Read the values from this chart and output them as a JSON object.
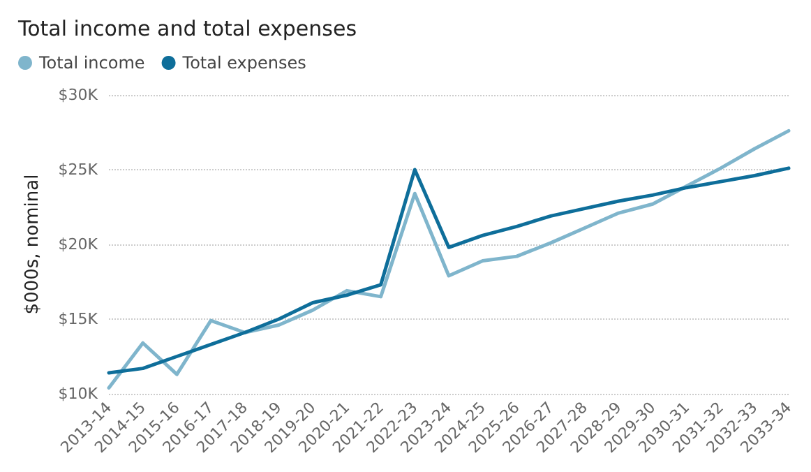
{
  "chart_data": {
    "type": "line",
    "title": "Total income and total expenses",
    "ylabel": "$000s, nominal",
    "categories": [
      "2013-14",
      "2014-15",
      "2015-16",
      "2016-17",
      "2017-18",
      "2018-19",
      "2019-20",
      "2020-21",
      "2021-22",
      "2022-23",
      "2023-24",
      "2024-25",
      "2025-26",
      "2026-27",
      "2027-28",
      "2028-29",
      "2029-30",
      "2030-31",
      "2031-32",
      "2032-33",
      "2033-34"
    ],
    "series": [
      {
        "name": "Total income",
        "color": "#7fb5cc",
        "values": [
          10400,
          13400,
          11300,
          14900,
          14100,
          14600,
          15600,
          16900,
          16500,
          23400,
          17900,
          18900,
          19200,
          20100,
          21100,
          22100,
          22700,
          23900,
          25100,
          26400,
          27600
        ]
      },
      {
        "name": "Total expenses",
        "color": "#0e6e9a",
        "values": [
          11400,
          11700,
          12500,
          13300,
          14100,
          15000,
          16100,
          16600,
          17300,
          25000,
          19800,
          20600,
          21200,
          21900,
          22400,
          22900,
          23300,
          23800,
          24200,
          24600,
          25100
        ]
      }
    ],
    "ylim": [
      10000,
      30000
    ],
    "yticks": [
      {
        "value": 10000,
        "label": "$10K"
      },
      {
        "value": 15000,
        "label": "$15K"
      },
      {
        "value": 20000,
        "label": "$20K"
      },
      {
        "value": 25000,
        "label": "$25K"
      },
      {
        "value": 30000,
        "label": "$30K"
      }
    ],
    "grid": "y",
    "legend": "top left",
    "marker": "none",
    "line_style": "solid"
  }
}
